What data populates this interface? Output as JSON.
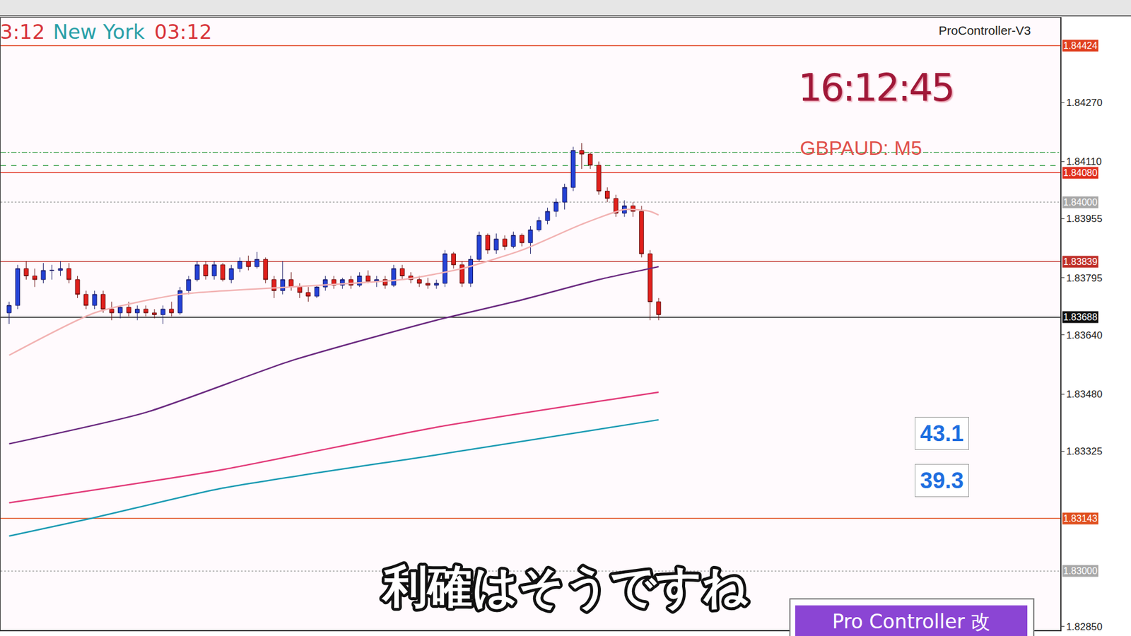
{
  "chart_data": {
    "type": "candlestick",
    "x": [
      0,
      1,
      2,
      3,
      4,
      5,
      6,
      7,
      8,
      9,
      10,
      11,
      12,
      13,
      14,
      15,
      16,
      17,
      18,
      19,
      20,
      21,
      22,
      23,
      24,
      25,
      26,
      27,
      28,
      29,
      30,
      31,
      32,
      33,
      34,
      35,
      36,
      37,
      38,
      39,
      40,
      41,
      42,
      43,
      44,
      45,
      46,
      47,
      48,
      49,
      50,
      51,
      52,
      53,
      54,
      55,
      56,
      57,
      58,
      59,
      60,
      61,
      62,
      63,
      64,
      65,
      66,
      67,
      68,
      69,
      70,
      71,
      72,
      73,
      74,
      75,
      76
    ],
    "series": [
      {
        "type": "candlestick",
        "values": [
          [
            1.837,
            1.8373,
            1.8367,
            1.8372
          ],
          [
            1.8372,
            1.8383,
            1.8371,
            1.8382
          ],
          [
            1.8382,
            1.8384,
            1.8379,
            1.838
          ],
          [
            1.838,
            1.8382,
            1.8377,
            1.8379
          ],
          [
            1.8379,
            1.83835,
            1.8378,
            1.83815
          ],
          [
            1.83815,
            1.8383,
            1.8379,
            1.83815
          ],
          [
            1.83815,
            1.8384,
            1.838,
            1.8382
          ],
          [
            1.8382,
            1.83835,
            1.8378,
            1.8379
          ],
          [
            1.8379,
            1.838,
            1.8374,
            1.8375
          ],
          [
            1.8375,
            1.8376,
            1.8371,
            1.8372
          ],
          [
            1.8372,
            1.8376,
            1.8371,
            1.8375
          ],
          [
            1.8375,
            1.8376,
            1.837,
            1.8371
          ],
          [
            1.8371,
            1.8373,
            1.8368,
            1.837
          ],
          [
            1.837,
            1.8372,
            1.83685,
            1.83715
          ],
          [
            1.83715,
            1.8373,
            1.8369,
            1.837
          ],
          [
            1.837,
            1.8372,
            1.8368,
            1.8371
          ],
          [
            1.8371,
            1.8372,
            1.8369,
            1.837
          ],
          [
            1.837,
            1.8371,
            1.83685,
            1.83695
          ],
          [
            1.83695,
            1.8372,
            1.8367,
            1.8371
          ],
          [
            1.8371,
            1.8373,
            1.8369,
            1.837
          ],
          [
            1.837,
            1.8377,
            1.83695,
            1.8376
          ],
          [
            1.8376,
            1.838,
            1.8375,
            1.8379
          ],
          [
            1.8379,
            1.8384,
            1.83785,
            1.8383
          ],
          [
            1.8383,
            1.8384,
            1.8379,
            1.838
          ],
          [
            1.838,
            1.8384,
            1.8379,
            1.8383
          ],
          [
            1.8383,
            1.83835,
            1.83785,
            1.8379
          ],
          [
            1.8379,
            1.8383,
            1.8378,
            1.8382
          ],
          [
            1.8382,
            1.8385,
            1.8381,
            1.8384
          ],
          [
            1.8384,
            1.83855,
            1.83815,
            1.83825
          ],
          [
            1.83825,
            1.83865,
            1.8382,
            1.83845
          ],
          [
            1.83845,
            1.8385,
            1.8378,
            1.8379
          ],
          [
            1.8379,
            1.838,
            1.8374,
            1.8376
          ],
          [
            1.8376,
            1.8384,
            1.8375,
            1.8379
          ],
          [
            1.8379,
            1.8381,
            1.8376,
            1.8377
          ],
          [
            1.8377,
            1.8378,
            1.8374,
            1.83755
          ],
          [
            1.83755,
            1.8377,
            1.8373,
            1.83745
          ],
          [
            1.83745,
            1.83775,
            1.8374,
            1.8377
          ],
          [
            1.8377,
            1.838,
            1.8376,
            1.8379
          ],
          [
            1.8379,
            1.838,
            1.83765,
            1.83775
          ],
          [
            1.83775,
            1.83795,
            1.83765,
            1.8379
          ],
          [
            1.8379,
            1.838,
            1.83765,
            1.83775
          ],
          [
            1.83775,
            1.8381,
            1.8377,
            1.838
          ],
          [
            1.838,
            1.83815,
            1.8378,
            1.83785
          ],
          [
            1.83785,
            1.838,
            1.8377,
            1.8379
          ],
          [
            1.8379,
            1.838,
            1.83765,
            1.83775
          ],
          [
            1.83775,
            1.8383,
            1.8377,
            1.8382
          ],
          [
            1.8382,
            1.8383,
            1.8379,
            1.838
          ],
          [
            1.838,
            1.8381,
            1.8378,
            1.8379
          ],
          [
            1.8379,
            1.838,
            1.8377,
            1.8378
          ],
          [
            1.8378,
            1.83795,
            1.83765,
            1.83775
          ],
          [
            1.83775,
            1.8379,
            1.83765,
            1.8378
          ],
          [
            1.8378,
            1.8387,
            1.8377,
            1.8386
          ],
          [
            1.8386,
            1.83865,
            1.8382,
            1.8383
          ],
          [
            1.8383,
            1.8384,
            1.8377,
            1.8378
          ],
          [
            1.8378,
            1.83855,
            1.8377,
            1.83845
          ],
          [
            1.83845,
            1.8392,
            1.8384,
            1.8391
          ],
          [
            1.8391,
            1.83915,
            1.8386,
            1.8387
          ],
          [
            1.8387,
            1.83915,
            1.8386,
            1.839
          ],
          [
            1.839,
            1.8391,
            1.8387,
            1.8388
          ],
          [
            1.8388,
            1.8392,
            1.83875,
            1.8391
          ],
          [
            1.8391,
            1.83915,
            1.8388,
            1.8389
          ],
          [
            1.8389,
            1.83935,
            1.8386,
            1.83925
          ],
          [
            1.83925,
            1.8396,
            1.8392,
            1.8395
          ],
          [
            1.8395,
            1.83985,
            1.8394,
            1.83975
          ],
          [
            1.83975,
            1.8401,
            1.8396,
            1.84
          ],
          [
            1.84,
            1.8405,
            1.8398,
            1.8404
          ],
          [
            1.8404,
            1.8415,
            1.8403,
            1.8414
          ],
          [
            1.8414,
            1.8416,
            1.8409,
            1.8413
          ],
          [
            1.8413,
            1.84135,
            1.8409,
            1.841
          ],
          [
            1.841,
            1.8411,
            1.8402,
            1.8403
          ],
          [
            1.8403,
            1.8404,
            1.84,
            1.8401
          ],
          [
            1.8401,
            1.8402,
            1.8396,
            1.8397
          ],
          [
            1.8397,
            1.84005,
            1.8396,
            1.8399
          ],
          [
            1.8399,
            1.84,
            1.8396,
            1.83975
          ],
          [
            1.83975,
            1.8399,
            1.8385,
            1.8386
          ],
          [
            1.8386,
            1.8387,
            1.8368,
            1.8373
          ],
          [
            1.8373,
            1.8374,
            1.8368,
            1.83695
          ]
        ]
      },
      {
        "type": "line",
        "color": "#f2b3b3",
        "x": [
          0,
          10,
          20,
          33,
          46,
          53,
          60,
          67,
          72,
          75,
          76
        ],
        "values": [
          1.83585,
          1.837,
          1.8375,
          1.8377,
          1.8379,
          1.8382,
          1.8387,
          1.8394,
          1.8398,
          1.83975,
          1.83965
        ]
      },
      {
        "type": "line",
        "color": "#6b2a80",
        "x": [
          0,
          16,
          33,
          50,
          60,
          69,
          76
        ],
        "values": [
          1.83345,
          1.8343,
          1.8357,
          1.8368,
          1.83735,
          1.8379,
          1.83825
        ]
      },
      {
        "type": "line",
        "color": "#e23c7a",
        "x": [
          0,
          25,
          50,
          76
        ],
        "values": [
          1.83185,
          1.83275,
          1.8339,
          1.83485
        ]
      },
      {
        "type": "line",
        "color": "#1c9bb3",
        "x": [
          0,
          10,
          25,
          50,
          76
        ],
        "values": [
          1.83095,
          1.83145,
          1.83225,
          1.83315,
          1.8341
        ]
      }
    ],
    "levels": [
      {
        "value": 1.84424,
        "label": "1.84424",
        "color": "#e0401f",
        "line_style": "solid"
      },
      {
        "value": 1.84135,
        "color": "#3aa04a",
        "line_style": "dashdot"
      },
      {
        "value": 1.84099,
        "color": "#3aa04a",
        "line_style": "dashed"
      },
      {
        "value": 1.8408,
        "label": "1.84080",
        "color": "#e0301f",
        "line_style": "solid"
      },
      {
        "value": 1.84,
        "label": "1.84000",
        "color": "#a8a8a8",
        "line_style": "dotted"
      },
      {
        "value": 1.83839,
        "label": "1.83839",
        "color": "#c0302a",
        "line_style": "solid"
      },
      {
        "value": 1.83688,
        "label": "1.83688",
        "color": "#111111",
        "line_style": "solid"
      },
      {
        "value": 1.83143,
        "label": "1.83143",
        "color": "#e0501f",
        "line_style": "solid"
      },
      {
        "value": 1.83,
        "label": "1.83000",
        "color": "#a8a8a8",
        "line_style": "dotted"
      }
    ],
    "xlim": [
      -1,
      123
    ],
    "xticks": [],
    "ylim": [
      1.8284,
      1.845
    ],
    "yticks": [
      {
        "value": 1.8427,
        "label": "1.84270"
      },
      {
        "value": 1.8411,
        "label": "1.84110"
      },
      {
        "value": 1.83955,
        "label": "1.83955"
      },
      {
        "value": 1.83795,
        "label": "1.83795"
      },
      {
        "value": 1.8364,
        "label": "1.83640"
      },
      {
        "value": 1.8348,
        "label": "1.83480"
      },
      {
        "value": 1.83325,
        "label": "1.83325"
      },
      {
        "value": 1.8285,
        "label": "1.82850"
      }
    ],
    "grid": false,
    "tick_labels": "y"
  },
  "panel": {
    "session_left": "3:12",
    "session_name": "New York",
    "session_time": "03:12",
    "indicator": "ProController-V3",
    "clock": "16:12:45",
    "symbol": "GBPAUD: M5",
    "gauges": [
      43.1,
      39.3
    ],
    "subtitle": "利確はそうですね",
    "button": "Pro Controller 改"
  }
}
